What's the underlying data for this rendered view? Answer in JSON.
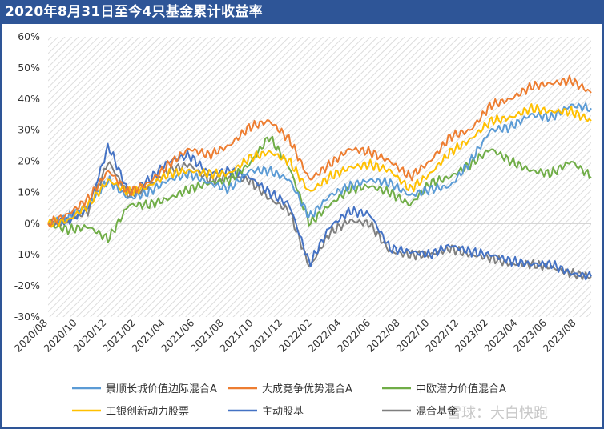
{
  "title": "2020年8月31日至今4只基金累计收益率",
  "watermark": "雪球：大白快跑",
  "colors": {
    "frame": "#2e5597",
    "plot_hatch": "#d9d9d9"
  },
  "chart_data": {
    "type": "line",
    "title": "2020年8月31日至今4只基金累计收益率",
    "xlabel": "",
    "ylabel": "",
    "ylim": [
      -30,
      60
    ],
    "yticks": [
      -30,
      -20,
      -10,
      0,
      10,
      20,
      30,
      40,
      50,
      60
    ],
    "ytick_labels": [
      "-30%",
      "-20%",
      "-10%",
      "0%",
      "10%",
      "20%",
      "30%",
      "40%",
      "50%",
      "60%"
    ],
    "xticks": [
      "2020/08",
      "2020/10",
      "2020/12",
      "2021/02",
      "2021/04",
      "2021/06",
      "2021/08",
      "2021/10",
      "2021/12",
      "2022/02",
      "2022/04",
      "2022/06",
      "2022/08",
      "2022/10",
      "2022/12",
      "2023/02",
      "2023/04",
      "2023/06",
      "2023/08"
    ],
    "x_unit": "month",
    "grid": false,
    "legend_position": "bottom",
    "series": [
      {
        "name": "景顺长城价值边际混合A",
        "color": "#5b9bd5",
        "values": [
          0,
          2,
          6,
          14,
          8,
          10,
          14,
          16,
          13,
          11,
          17,
          17,
          14,
          2,
          9,
          12,
          14,
          13,
          9,
          11,
          12,
          20,
          30,
          31,
          35,
          34,
          38,
          37
        ]
      },
      {
        "name": "大成竞争优势混合A",
        "color": "#ed7d31",
        "values": [
          0,
          3,
          8,
          17,
          10,
          13,
          19,
          24,
          22,
          25,
          31,
          33,
          27,
          14,
          19,
          24,
          23,
          20,
          15,
          20,
          28,
          30,
          38,
          40,
          44,
          45,
          46,
          42
        ]
      },
      {
        "name": "中欧潜力价值混合A",
        "color": "#70ad47",
        "values": [
          0,
          -2,
          -1,
          -5,
          6,
          6,
          8,
          11,
          13,
          14,
          19,
          28,
          18,
          0,
          6,
          11,
          12,
          10,
          6,
          13,
          15,
          19,
          24,
          20,
          17,
          16,
          20,
          15
        ]
      },
      {
        "name": "工银创新动力股票",
        "color": "#ffc000",
        "values": [
          0,
          1,
          6,
          14,
          10,
          12,
          16,
          17,
          16,
          16,
          21,
          23,
          20,
          10,
          15,
          18,
          19,
          17,
          11,
          16,
          23,
          27,
          33,
          34,
          37,
          36,
          36,
          33
        ]
      },
      {
        "name": "主动股基",
        "color": "#4472c4",
        "values": [
          0,
          1,
          5,
          25,
          10,
          14,
          20,
          22,
          16,
          17,
          15,
          10,
          6,
          -13,
          -1,
          4,
          3,
          -8,
          -9,
          -10,
          -7,
          -9,
          -10,
          -12,
          -13,
          -13,
          -16,
          -17
        ]
      },
      {
        "name": "混合基金",
        "color": "#7f7f7f",
        "values": [
          0,
          1,
          4,
          20,
          9,
          12,
          17,
          19,
          14,
          15,
          14,
          8,
          4,
          -14,
          -3,
          1,
          0,
          -9,
          -10,
          -10,
          -8,
          -10,
          -11,
          -13,
          -13,
          -14,
          -16,
          -17
        ]
      }
    ]
  }
}
